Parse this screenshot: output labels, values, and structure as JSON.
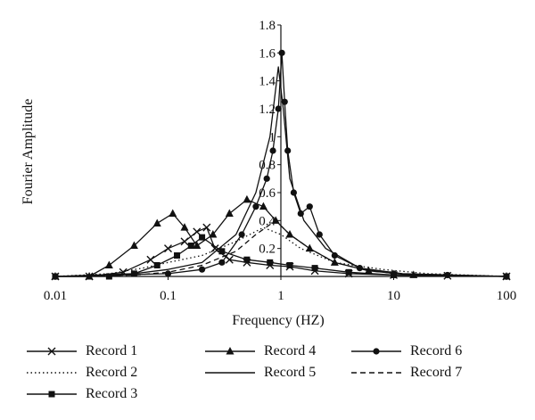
{
  "chart_data": {
    "type": "line",
    "xlabel": "Frequency (HZ)",
    "ylabel": "Fourier Amplitude",
    "x_scale": "log",
    "xlim": [
      0.01,
      100
    ],
    "ylim": [
      0,
      1.8
    ],
    "x_ticks": [
      "0.01",
      "0.1",
      "1",
      "10",
      "100"
    ],
    "y_ticks": [
      "0.2",
      "0.4",
      "0.6",
      "0.8",
      "1",
      "1.2",
      "1.4",
      "1.6",
      "1.8"
    ],
    "legend_position": "bottom",
    "series": [
      {
        "name": "Record 1",
        "marker": "x",
        "dash": "solid",
        "x": [
          0.01,
          0.02,
          0.04,
          0.07,
          0.1,
          0.14,
          0.18,
          0.22,
          0.26,
          0.35,
          0.5,
          0.8,
          1.2,
          2,
          4,
          10,
          30,
          100
        ],
        "y": [
          0,
          0,
          0.03,
          0.12,
          0.2,
          0.25,
          0.32,
          0.35,
          0.2,
          0.12,
          0.1,
          0.08,
          0.07,
          0.04,
          0.02,
          0.01,
          0.005,
          0
        ]
      },
      {
        "name": "Record 2",
        "marker": "none",
        "dash": "dotted",
        "x": [
          0.01,
          0.03,
          0.06,
          0.1,
          0.2,
          0.4,
          0.7,
          1.0,
          1.5,
          3,
          8,
          20,
          100
        ],
        "y": [
          0,
          0.02,
          0.06,
          0.1,
          0.15,
          0.25,
          0.35,
          0.3,
          0.2,
          0.1,
          0.05,
          0.02,
          0
        ]
      },
      {
        "name": "Record 3",
        "marker": "square",
        "dash": "solid",
        "x": [
          0.01,
          0.03,
          0.05,
          0.08,
          0.12,
          0.16,
          0.2,
          0.3,
          0.5,
          0.8,
          1.2,
          2,
          4,
          10,
          100
        ],
        "y": [
          0,
          0,
          0.02,
          0.08,
          0.15,
          0.22,
          0.28,
          0.18,
          0.12,
          0.1,
          0.08,
          0.06,
          0.03,
          0.01,
          0
        ]
      },
      {
        "name": "Record 4",
        "marker": "triangle",
        "dash": "solid",
        "x": [
          0.01,
          0.02,
          0.03,
          0.05,
          0.08,
          0.11,
          0.14,
          0.18,
          0.25,
          0.35,
          0.5,
          0.7,
          0.9,
          1.2,
          1.8,
          3,
          6,
          15,
          100
        ],
        "y": [
          0,
          0,
          0.08,
          0.22,
          0.38,
          0.45,
          0.35,
          0.22,
          0.3,
          0.45,
          0.55,
          0.5,
          0.4,
          0.3,
          0.2,
          0.1,
          0.04,
          0.01,
          0
        ]
      },
      {
        "name": "Record 5",
        "marker": "none",
        "dash": "solid",
        "x": [
          0.01,
          0.05,
          0.1,
          0.2,
          0.4,
          0.6,
          0.8,
          0.95,
          1.05,
          1.2,
          1.6,
          2.5,
          5,
          12,
          100
        ],
        "y": [
          0,
          0.02,
          0.05,
          0.1,
          0.3,
          0.6,
          1.0,
          1.5,
          1.2,
          0.7,
          0.4,
          0.2,
          0.06,
          0.02,
          0
        ]
      },
      {
        "name": "Record 6",
        "marker": "circle",
        "dash": "solid",
        "x": [
          0.01,
          0.1,
          0.2,
          0.3,
          0.45,
          0.6,
          0.75,
          0.85,
          0.95,
          1.02,
          1.08,
          1.15,
          1.3,
          1.5,
          1.8,
          2.2,
          3,
          5,
          10,
          30,
          100
        ],
        "y": [
          0,
          0.02,
          0.05,
          0.1,
          0.3,
          0.5,
          0.7,
          0.9,
          1.2,
          1.6,
          1.25,
          0.9,
          0.6,
          0.45,
          0.5,
          0.3,
          0.15,
          0.06,
          0.02,
          0.01,
          0
        ]
      },
      {
        "name": "Record 7",
        "marker": "none",
        "dash": "dashed",
        "x": [
          0.01,
          0.05,
          0.1,
          0.2,
          0.4,
          0.6,
          0.9,
          1.2,
          1.8,
          3,
          6,
          15,
          100
        ],
        "y": [
          0,
          0.01,
          0.03,
          0.08,
          0.18,
          0.3,
          0.4,
          0.3,
          0.2,
          0.1,
          0.04,
          0.01,
          0
        ]
      }
    ]
  }
}
